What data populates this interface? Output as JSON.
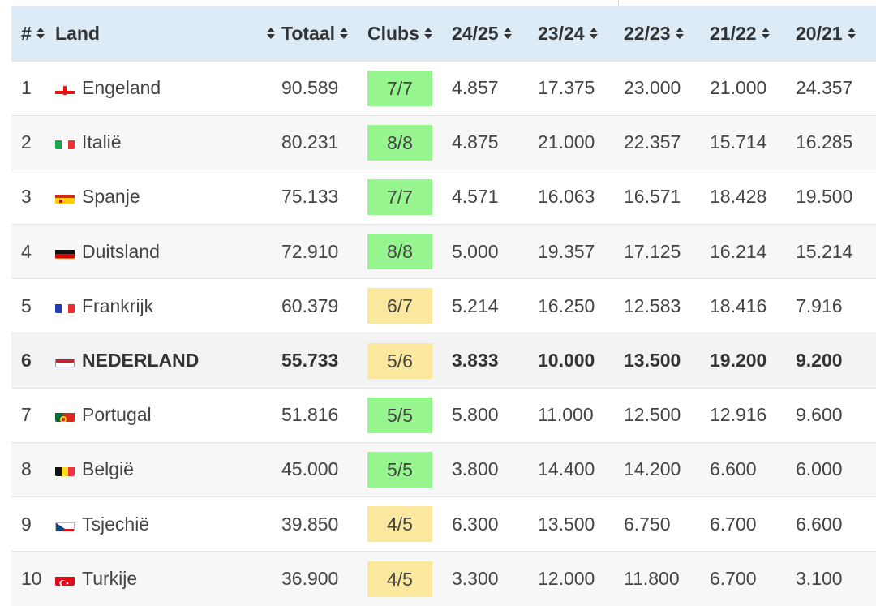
{
  "headers": {
    "rank": "#",
    "land": "Land",
    "totaal": "Totaal",
    "clubs": "Clubs",
    "s2425": "24/25",
    "s2324": "23/24",
    "s2223": "22/23",
    "s2122": "21/22",
    "s2021": "20/21"
  },
  "colors": {
    "header_bg": "#dcebf6",
    "clubs_full": "#97f58f",
    "clubs_partial": "#fbe89f"
  },
  "rows": [
    {
      "rank": "1",
      "land": "Engeland",
      "flag": "england-flag-icon",
      "totaal": "90.589",
      "clubs": "7/7",
      "clubs_status": "full",
      "s2425": "4.857",
      "s2324": "17.375",
      "s2223": "23.000",
      "s2122": "21.000",
      "s2021": "24.357"
    },
    {
      "rank": "2",
      "land": "Italië",
      "flag": "italy-flag-icon",
      "totaal": "80.231",
      "clubs": "8/8",
      "clubs_status": "full",
      "s2425": "4.875",
      "s2324": "21.000",
      "s2223": "22.357",
      "s2122": "15.714",
      "s2021": "16.285"
    },
    {
      "rank": "3",
      "land": "Spanje",
      "flag": "spain-flag-icon",
      "totaal": "75.133",
      "clubs": "7/7",
      "clubs_status": "full",
      "s2425": "4.571",
      "s2324": "16.063",
      "s2223": "16.571",
      "s2122": "18.428",
      "s2021": "19.500"
    },
    {
      "rank": "4",
      "land": "Duitsland",
      "flag": "germany-flag-icon",
      "totaal": "72.910",
      "clubs": "8/8",
      "clubs_status": "full",
      "s2425": "5.000",
      "s2324": "19.357",
      "s2223": "17.125",
      "s2122": "16.214",
      "s2021": "15.214"
    },
    {
      "rank": "5",
      "land": "Frankrijk",
      "flag": "france-flag-icon",
      "totaal": "60.379",
      "clubs": "6/7",
      "clubs_status": "partial",
      "s2425": "5.214",
      "s2324": "16.250",
      "s2223": "12.583",
      "s2122": "18.416",
      "s2021": "7.916"
    },
    {
      "rank": "6",
      "land": "NEDERLAND",
      "flag": "netherlands-flag-icon",
      "totaal": "55.733",
      "clubs": "5/6",
      "clubs_status": "partial",
      "s2425": "3.833",
      "s2324": "10.000",
      "s2223": "13.500",
      "s2122": "19.200",
      "s2021": "9.200",
      "highlight": true
    },
    {
      "rank": "7",
      "land": "Portugal",
      "flag": "portugal-flag-icon",
      "totaal": "51.816",
      "clubs": "5/5",
      "clubs_status": "full",
      "s2425": "5.800",
      "s2324": "11.000",
      "s2223": "12.500",
      "s2122": "12.916",
      "s2021": "9.600"
    },
    {
      "rank": "8",
      "land": "België",
      "flag": "belgium-flag-icon",
      "totaal": "45.000",
      "clubs": "5/5",
      "clubs_status": "full",
      "s2425": "3.800",
      "s2324": "14.400",
      "s2223": "14.200",
      "s2122": "6.600",
      "s2021": "6.000"
    },
    {
      "rank": "9",
      "land": "Tsjechië",
      "flag": "czechia-flag-icon",
      "totaal": "39.850",
      "clubs": "4/5",
      "clubs_status": "partial",
      "s2425": "6.300",
      "s2324": "13.500",
      "s2223": "6.750",
      "s2122": "6.700",
      "s2021": "6.600"
    },
    {
      "rank": "10",
      "land": "Turkije",
      "flag": "turkey-flag-icon",
      "totaal": "36.900",
      "clubs": "4/5",
      "clubs_status": "partial",
      "s2425": "3.300",
      "s2324": "12.000",
      "s2223": "11.800",
      "s2122": "6.700",
      "s2021": "3.100"
    }
  ]
}
